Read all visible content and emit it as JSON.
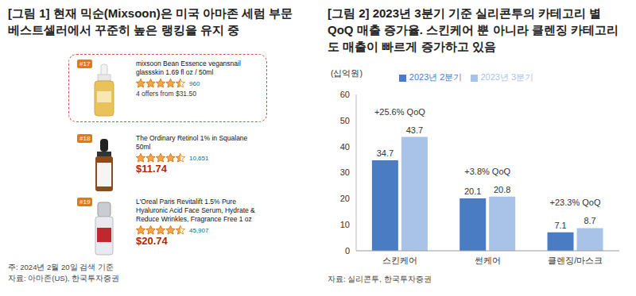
{
  "figure1": {
    "title": "[그림 1] 현재 믹순(Mixsoon)은 미국 아마존 세럼 부문 베스트셀러에서 꾸준히 높은 랭킹을 유지 중",
    "items": [
      {
        "rank": "#17",
        "name": "mixsoon Bean Essence vegansnail glassskin 1.69 fl oz / 50ml",
        "rating": 4.5,
        "reviews": "960",
        "offers": "4 offers from $31.50",
        "highlighted": true
      },
      {
        "rank": "#18",
        "name": "The Ordinary Retinol 1% in Squalane 50ml",
        "rating": 4.5,
        "reviews": "10,651",
        "price": "$11.74",
        "highlighted": false
      },
      {
        "rank": "#19",
        "name": "L'Oreal Paris Revitalift 1.5% Pure Hyaluronic Acid Face Serum, Hydrate & Reduce Wrinkles, Fragrance Free 1 oz",
        "rating": 4.5,
        "reviews": "45,907",
        "price": "$20.74",
        "highlighted": false
      }
    ],
    "notes": [
      "주: 2024년 2월 20일 검색 기준",
      "자료: 아마존(US), 한국투자증권"
    ]
  },
  "chart_data": {
    "type": "bar",
    "title": "[그림 2] 2023년 3분기 기준 실리콘투의 카테고리 별 QoQ 매출 증가율. 스킨케어 뿐 아니라 클렌징 카테고리도 매출이 빠르게 증가하고 있음",
    "ylabel": "(십억원)",
    "categories": [
      "스킨케어",
      "썬케어",
      "클렌징/마스크"
    ],
    "series": [
      {
        "name": "2023년 2분기",
        "color": "#4a7cc4",
        "values": [
          34.7,
          20.1,
          7.1
        ]
      },
      {
        "name": "2023년 3분기",
        "color": "#a9c2e8",
        "values": [
          43.7,
          20.8,
          8.7
        ]
      }
    ],
    "annotations": [
      "+25.6% QoQ",
      "+3.8% QoQ",
      "+23.3% QoQ"
    ],
    "ylim": [
      0,
      60
    ],
    "yticks": [
      0,
      10,
      20,
      30,
      40,
      50,
      60
    ],
    "grid": false,
    "legend": "top",
    "data_labels": true,
    "source": "자료: 실리콘투, 한국투자증권"
  }
}
